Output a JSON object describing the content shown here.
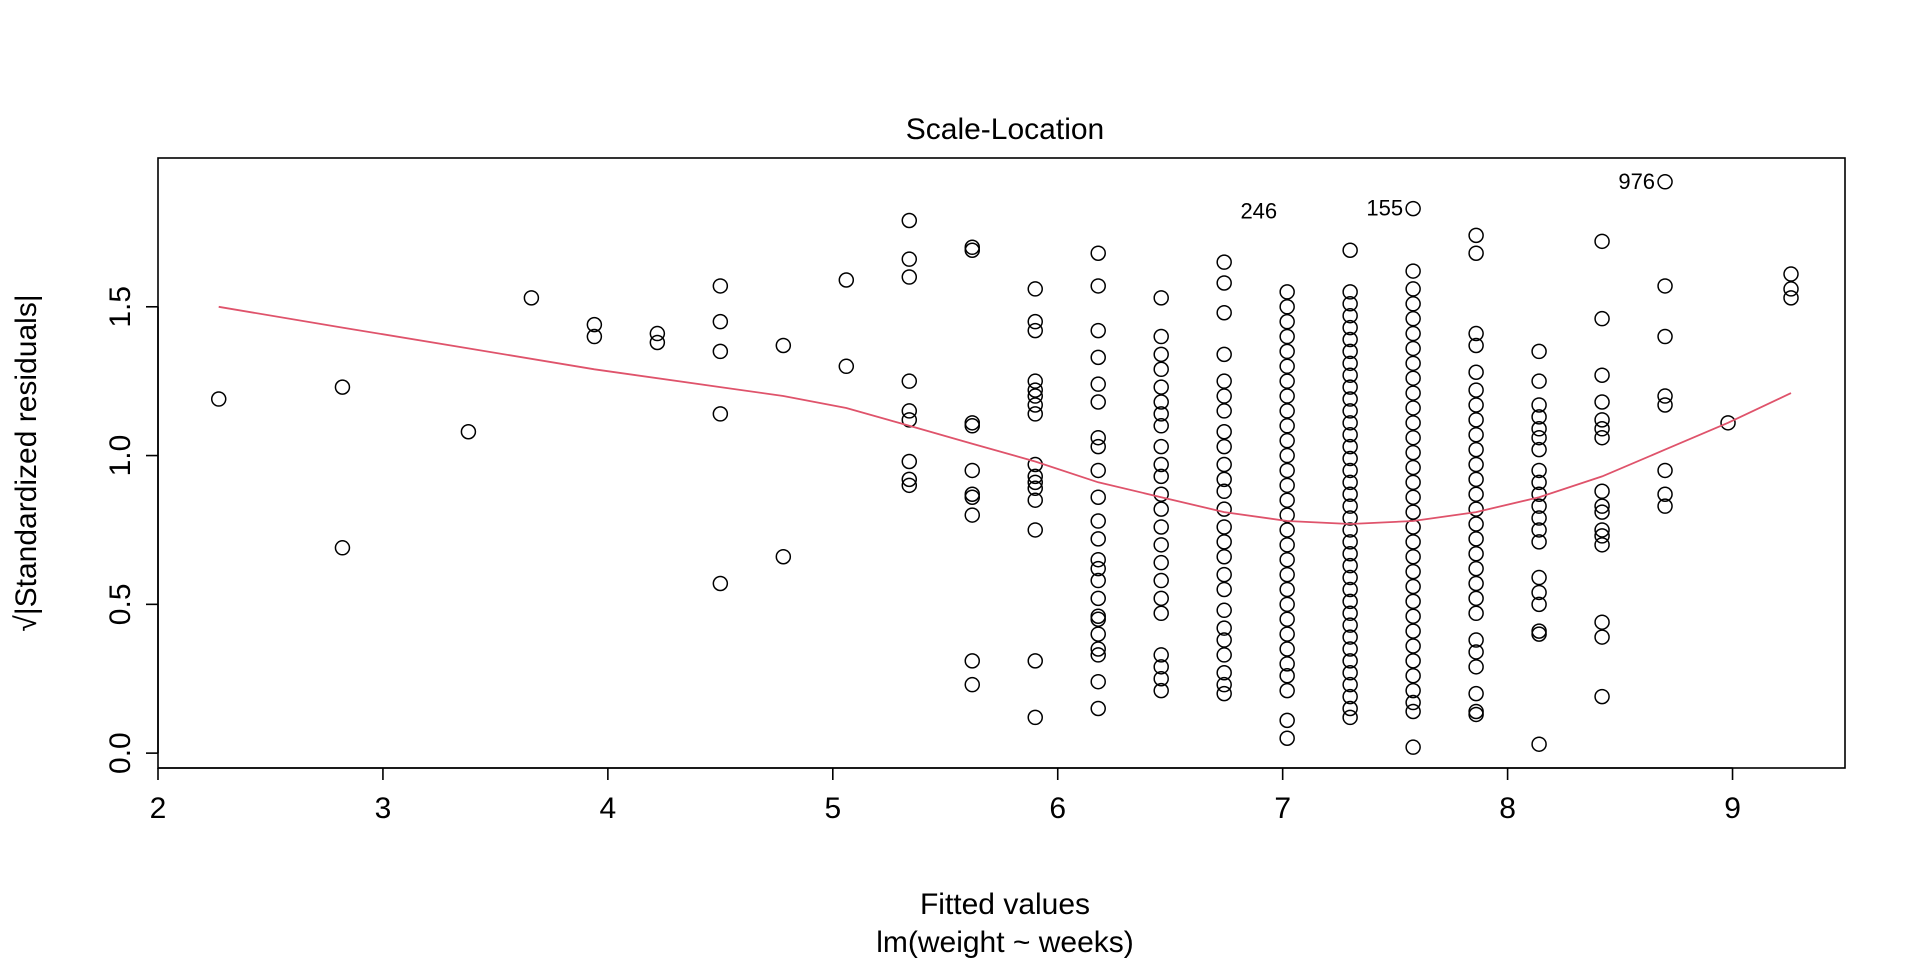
{
  "chart_data": {
    "type": "scatter",
    "title": "Scale-Location",
    "xlabel": "Fitted values",
    "subtitle": "lm(weight ~ weeks)",
    "ylabel": "√|Standardized residuals|",
    "xlim": [
      2.0,
      9.5
    ],
    "ylim": [
      -0.05,
      2.0
    ],
    "x_ticks": [
      2,
      3,
      4,
      5,
      6,
      7,
      8,
      9
    ],
    "y_ticks": [
      0.0,
      0.5,
      1.0,
      1.5
    ],
    "x_tick_labels": [
      "2",
      "3",
      "4",
      "5",
      "6",
      "7",
      "8",
      "9"
    ],
    "y_tick_labels": [
      "0.0",
      "0.5",
      "1.0",
      "1.5"
    ],
    "grid": false,
    "point_style": "open-circle",
    "smooth_color": "#DF536B",
    "points": [
      [
        2.27,
        1.19
      ],
      [
        2.82,
        1.23
      ],
      [
        2.82,
        0.69
      ],
      [
        3.38,
        1.08
      ],
      [
        3.66,
        1.53
      ],
      [
        3.94,
        1.44
      ],
      [
        3.94,
        1.4
      ],
      [
        4.22,
        1.41
      ],
      [
        4.22,
        1.38
      ],
      [
        4.5,
        1.57
      ],
      [
        4.5,
        1.45
      ],
      [
        4.5,
        1.35
      ],
      [
        4.5,
        1.14
      ],
      [
        4.5,
        0.57
      ],
      [
        4.78,
        1.37
      ],
      [
        4.78,
        0.66
      ],
      [
        5.06,
        1.59
      ],
      [
        5.06,
        1.3
      ],
      [
        5.34,
        1.79
      ],
      [
        5.34,
        1.66
      ],
      [
        5.34,
        1.6
      ],
      [
        5.34,
        1.25
      ],
      [
        5.34,
        1.15
      ],
      [
        5.34,
        1.12
      ],
      [
        5.34,
        0.98
      ],
      [
        5.34,
        0.92
      ],
      [
        5.34,
        0.9
      ],
      [
        5.62,
        1.7
      ],
      [
        5.62,
        1.69
      ],
      [
        5.62,
        1.11
      ],
      [
        5.62,
        1.1
      ],
      [
        5.62,
        0.95
      ],
      [
        5.62,
        0.87
      ],
      [
        5.62,
        0.86
      ],
      [
        5.62,
        0.8
      ],
      [
        5.62,
        0.31
      ],
      [
        5.62,
        0.23
      ],
      [
        5.9,
        1.56
      ],
      [
        5.9,
        1.45
      ],
      [
        5.9,
        1.42
      ],
      [
        5.9,
        1.25
      ],
      [
        5.9,
        1.22
      ],
      [
        5.9,
        1.2
      ],
      [
        5.9,
        1.17
      ],
      [
        5.9,
        1.14
      ],
      [
        5.9,
        0.97
      ],
      [
        5.9,
        0.93
      ],
      [
        5.9,
        0.91
      ],
      [
        5.9,
        0.89
      ],
      [
        5.9,
        0.85
      ],
      [
        5.9,
        0.75
      ],
      [
        5.9,
        0.31
      ],
      [
        5.9,
        0.12
      ],
      [
        6.18,
        1.68
      ],
      [
        6.18,
        1.57
      ],
      [
        6.18,
        1.42
      ],
      [
        6.18,
        1.33
      ],
      [
        6.18,
        1.24
      ],
      [
        6.18,
        1.18
      ],
      [
        6.18,
        1.06
      ],
      [
        6.18,
        1.03
      ],
      [
        6.18,
        0.95
      ],
      [
        6.18,
        0.86
      ],
      [
        6.18,
        0.78
      ],
      [
        6.18,
        0.72
      ],
      [
        6.18,
        0.65
      ],
      [
        6.18,
        0.62
      ],
      [
        6.18,
        0.58
      ],
      [
        6.18,
        0.52
      ],
      [
        6.18,
        0.46
      ],
      [
        6.18,
        0.45
      ],
      [
        6.18,
        0.4
      ],
      [
        6.18,
        0.35
      ],
      [
        6.18,
        0.33
      ],
      [
        6.18,
        0.24
      ],
      [
        6.18,
        0.15
      ],
      [
        6.46,
        1.53
      ],
      [
        6.46,
        1.4
      ],
      [
        6.46,
        1.34
      ],
      [
        6.46,
        1.29
      ],
      [
        6.46,
        1.23
      ],
      [
        6.46,
        1.18
      ],
      [
        6.46,
        1.14
      ],
      [
        6.46,
        1.1
      ],
      [
        6.46,
        1.03
      ],
      [
        6.46,
        0.97
      ],
      [
        6.46,
        0.93
      ],
      [
        6.46,
        0.87
      ],
      [
        6.46,
        0.82
      ],
      [
        6.46,
        0.76
      ],
      [
        6.46,
        0.7
      ],
      [
        6.46,
        0.64
      ],
      [
        6.46,
        0.58
      ],
      [
        6.46,
        0.52
      ],
      [
        6.46,
        0.47
      ],
      [
        6.46,
        0.33
      ],
      [
        6.46,
        0.29
      ],
      [
        6.46,
        0.25
      ],
      [
        6.46,
        0.21
      ],
      [
        6.74,
        1.65
      ],
      [
        6.74,
        1.58
      ],
      [
        6.74,
        1.48
      ],
      [
        6.74,
        1.34
      ],
      [
        6.74,
        1.25
      ],
      [
        6.74,
        1.2
      ],
      [
        6.74,
        1.15
      ],
      [
        6.74,
        1.08
      ],
      [
        6.74,
        1.03
      ],
      [
        6.74,
        0.97
      ],
      [
        6.74,
        0.92
      ],
      [
        6.74,
        0.88
      ],
      [
        6.74,
        0.82
      ],
      [
        6.74,
        0.76
      ],
      [
        6.74,
        0.71
      ],
      [
        6.74,
        0.66
      ],
      [
        6.74,
        0.6
      ],
      [
        6.74,
        0.55
      ],
      [
        6.74,
        0.48
      ],
      [
        6.74,
        0.42
      ],
      [
        6.74,
        0.38
      ],
      [
        6.74,
        0.33
      ],
      [
        6.74,
        0.27
      ],
      [
        6.74,
        0.23
      ],
      [
        6.74,
        0.2
      ],
      [
        7.02,
        1.55
      ],
      [
        7.02,
        1.5
      ],
      [
        7.02,
        1.45
      ],
      [
        7.02,
        1.4
      ],
      [
        7.02,
        1.35
      ],
      [
        7.02,
        1.3
      ],
      [
        7.02,
        1.25
      ],
      [
        7.02,
        1.2
      ],
      [
        7.02,
        1.15
      ],
      [
        7.02,
        1.1
      ],
      [
        7.02,
        1.05
      ],
      [
        7.02,
        1.0
      ],
      [
        7.02,
        0.95
      ],
      [
        7.02,
        0.9
      ],
      [
        7.02,
        0.85
      ],
      [
        7.02,
        0.8
      ],
      [
        7.02,
        0.75
      ],
      [
        7.02,
        0.7
      ],
      [
        7.02,
        0.65
      ],
      [
        7.02,
        0.6
      ],
      [
        7.02,
        0.55
      ],
      [
        7.02,
        0.5
      ],
      [
        7.02,
        0.45
      ],
      [
        7.02,
        0.4
      ],
      [
        7.02,
        0.35
      ],
      [
        7.02,
        0.3
      ],
      [
        7.02,
        0.26
      ],
      [
        7.02,
        0.21
      ],
      [
        7.02,
        0.11
      ],
      [
        7.02,
        0.05
      ],
      [
        7.3,
        1.69
      ],
      [
        7.3,
        1.55
      ],
      [
        7.3,
        1.51
      ],
      [
        7.3,
        1.47
      ],
      [
        7.3,
        1.43
      ],
      [
        7.3,
        1.39
      ],
      [
        7.3,
        1.35
      ],
      [
        7.3,
        1.31
      ],
      [
        7.3,
        1.27
      ],
      [
        7.3,
        1.23
      ],
      [
        7.3,
        1.19
      ],
      [
        7.3,
        1.15
      ],
      [
        7.3,
        1.11
      ],
      [
        7.3,
        1.07
      ],
      [
        7.3,
        1.03
      ],
      [
        7.3,
        0.99
      ],
      [
        7.3,
        0.95
      ],
      [
        7.3,
        0.91
      ],
      [
        7.3,
        0.87
      ],
      [
        7.3,
        0.83
      ],
      [
        7.3,
        0.79
      ],
      [
        7.3,
        0.75
      ],
      [
        7.3,
        0.71
      ],
      [
        7.3,
        0.67
      ],
      [
        7.3,
        0.63
      ],
      [
        7.3,
        0.59
      ],
      [
        7.3,
        0.55
      ],
      [
        7.3,
        0.51
      ],
      [
        7.3,
        0.47
      ],
      [
        7.3,
        0.43
      ],
      [
        7.3,
        0.39
      ],
      [
        7.3,
        0.35
      ],
      [
        7.3,
        0.31
      ],
      [
        7.3,
        0.27
      ],
      [
        7.3,
        0.23
      ],
      [
        7.3,
        0.19
      ],
      [
        7.3,
        0.15
      ],
      [
        7.3,
        0.12
      ],
      [
        7.58,
        1.83
      ],
      [
        7.58,
        1.62
      ],
      [
        7.58,
        1.56
      ],
      [
        7.58,
        1.51
      ],
      [
        7.58,
        1.46
      ],
      [
        7.58,
        1.41
      ],
      [
        7.58,
        1.36
      ],
      [
        7.58,
        1.31
      ],
      [
        7.58,
        1.26
      ],
      [
        7.58,
        1.21
      ],
      [
        7.58,
        1.16
      ],
      [
        7.58,
        1.11
      ],
      [
        7.58,
        1.06
      ],
      [
        7.58,
        1.01
      ],
      [
        7.58,
        0.96
      ],
      [
        7.58,
        0.91
      ],
      [
        7.58,
        0.86
      ],
      [
        7.58,
        0.81
      ],
      [
        7.58,
        0.76
      ],
      [
        7.58,
        0.71
      ],
      [
        7.58,
        0.66
      ],
      [
        7.58,
        0.61
      ],
      [
        7.58,
        0.56
      ],
      [
        7.58,
        0.51
      ],
      [
        7.58,
        0.46
      ],
      [
        7.58,
        0.41
      ],
      [
        7.58,
        0.36
      ],
      [
        7.58,
        0.31
      ],
      [
        7.58,
        0.26
      ],
      [
        7.58,
        0.21
      ],
      [
        7.58,
        0.17
      ],
      [
        7.58,
        0.14
      ],
      [
        7.58,
        0.02
      ],
      [
        7.86,
        1.74
      ],
      [
        7.86,
        1.68
      ],
      [
        7.86,
        1.41
      ],
      [
        7.86,
        1.37
      ],
      [
        7.86,
        1.28
      ],
      [
        7.86,
        1.22
      ],
      [
        7.86,
        1.17
      ],
      [
        7.86,
        1.12
      ],
      [
        7.86,
        1.07
      ],
      [
        7.86,
        1.02
      ],
      [
        7.86,
        0.97
      ],
      [
        7.86,
        0.92
      ],
      [
        7.86,
        0.87
      ],
      [
        7.86,
        0.82
      ],
      [
        7.86,
        0.77
      ],
      [
        7.86,
        0.72
      ],
      [
        7.86,
        0.67
      ],
      [
        7.86,
        0.62
      ],
      [
        7.86,
        0.57
      ],
      [
        7.86,
        0.52
      ],
      [
        7.86,
        0.47
      ],
      [
        7.86,
        0.38
      ],
      [
        7.86,
        0.34
      ],
      [
        7.86,
        0.29
      ],
      [
        7.86,
        0.2
      ],
      [
        7.86,
        0.14
      ],
      [
        7.86,
        0.13
      ],
      [
        8.14,
        1.35
      ],
      [
        8.14,
        1.25
      ],
      [
        8.14,
        1.17
      ],
      [
        8.14,
        1.13
      ],
      [
        8.14,
        1.09
      ],
      [
        8.14,
        1.06
      ],
      [
        8.14,
        1.02
      ],
      [
        8.14,
        0.95
      ],
      [
        8.14,
        0.91
      ],
      [
        8.14,
        0.87
      ],
      [
        8.14,
        0.83
      ],
      [
        8.14,
        0.79
      ],
      [
        8.14,
        0.75
      ],
      [
        8.14,
        0.71
      ],
      [
        8.14,
        0.59
      ],
      [
        8.14,
        0.54
      ],
      [
        8.14,
        0.5
      ],
      [
        8.14,
        0.41
      ],
      [
        8.14,
        0.4
      ],
      [
        8.14,
        0.03
      ],
      [
        8.42,
        1.72
      ],
      [
        8.42,
        1.46
      ],
      [
        8.42,
        1.27
      ],
      [
        8.42,
        1.18
      ],
      [
        8.42,
        1.12
      ],
      [
        8.42,
        1.09
      ],
      [
        8.42,
        1.06
      ],
      [
        8.42,
        0.88
      ],
      [
        8.42,
        0.83
      ],
      [
        8.42,
        0.81
      ],
      [
        8.42,
        0.75
      ],
      [
        8.42,
        0.73
      ],
      [
        8.42,
        0.7
      ],
      [
        8.42,
        0.44
      ],
      [
        8.42,
        0.39
      ],
      [
        8.42,
        0.19
      ],
      [
        8.7,
        1.92
      ],
      [
        8.7,
        1.57
      ],
      [
        8.7,
        1.4
      ],
      [
        8.7,
        1.2
      ],
      [
        8.7,
        1.17
      ],
      [
        8.7,
        0.95
      ],
      [
        8.7,
        0.87
      ],
      [
        8.7,
        0.83
      ],
      [
        8.98,
        1.11
      ],
      [
        9.26,
        1.61
      ],
      [
        9.26,
        1.56
      ],
      [
        9.26,
        1.53
      ]
    ],
    "smooth": {
      "x": [
        2.27,
        2.82,
        3.38,
        3.94,
        4.5,
        4.78,
        5.06,
        5.34,
        5.62,
        5.9,
        6.18,
        6.46,
        6.74,
        7.02,
        7.3,
        7.58,
        7.86,
        8.14,
        8.42,
        8.7,
        8.98,
        9.26
      ],
      "y": [
        1.5,
        1.43,
        1.36,
        1.29,
        1.23,
        1.2,
        1.16,
        1.1,
        1.04,
        0.98,
        0.91,
        0.86,
        0.81,
        0.78,
        0.77,
        0.78,
        0.81,
        0.86,
        0.93,
        1.02,
        1.11,
        1.21
      ]
    },
    "annotations": [
      {
        "label": "246",
        "x": 7.02,
        "y": 1.82
      },
      {
        "label": "155",
        "x": 7.58,
        "y": 1.83
      },
      {
        "label": "976",
        "x": 8.7,
        "y": 1.92
      }
    ]
  }
}
